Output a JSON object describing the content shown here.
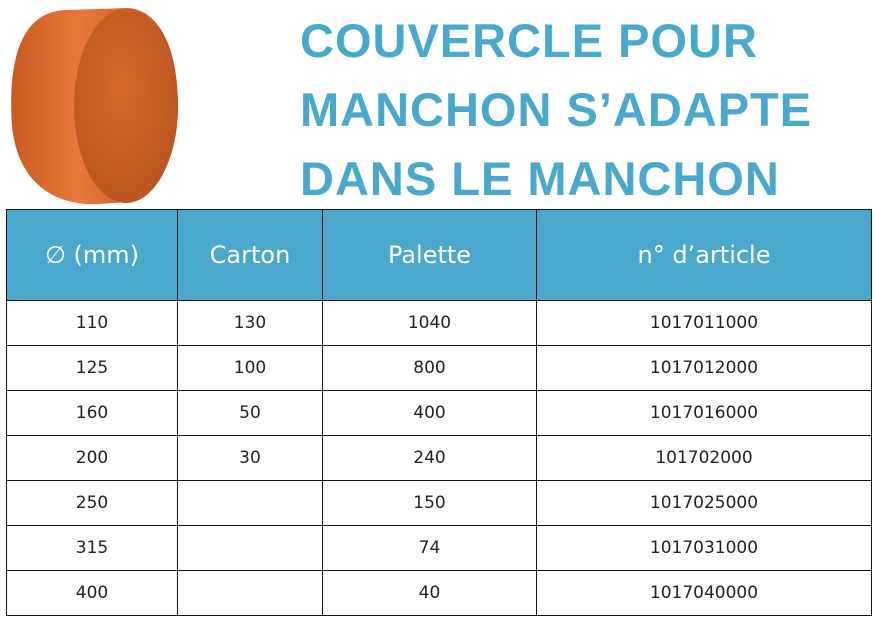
{
  "header": {
    "title_lines": [
      "COUVERCLE POUR",
      "MANCHON S’ADAPTE",
      "DANS LE MANCHON"
    ]
  },
  "table": {
    "columns": [
      "∅ (mm)",
      "Carton",
      "Palette",
      "n° d’article"
    ],
    "rows": [
      [
        110,
        130,
        1040,
        1017011000
      ],
      [
        125,
        100,
        800,
        1017012000
      ],
      [
        160,
        50,
        400,
        1017016000
      ],
      [
        200,
        30,
        240,
        101702000
      ],
      [
        250,
        null,
        150,
        1017025000
      ],
      [
        315,
        null,
        74,
        1017031000
      ],
      [
        400,
        null,
        40,
        1017040000
      ]
    ]
  }
}
